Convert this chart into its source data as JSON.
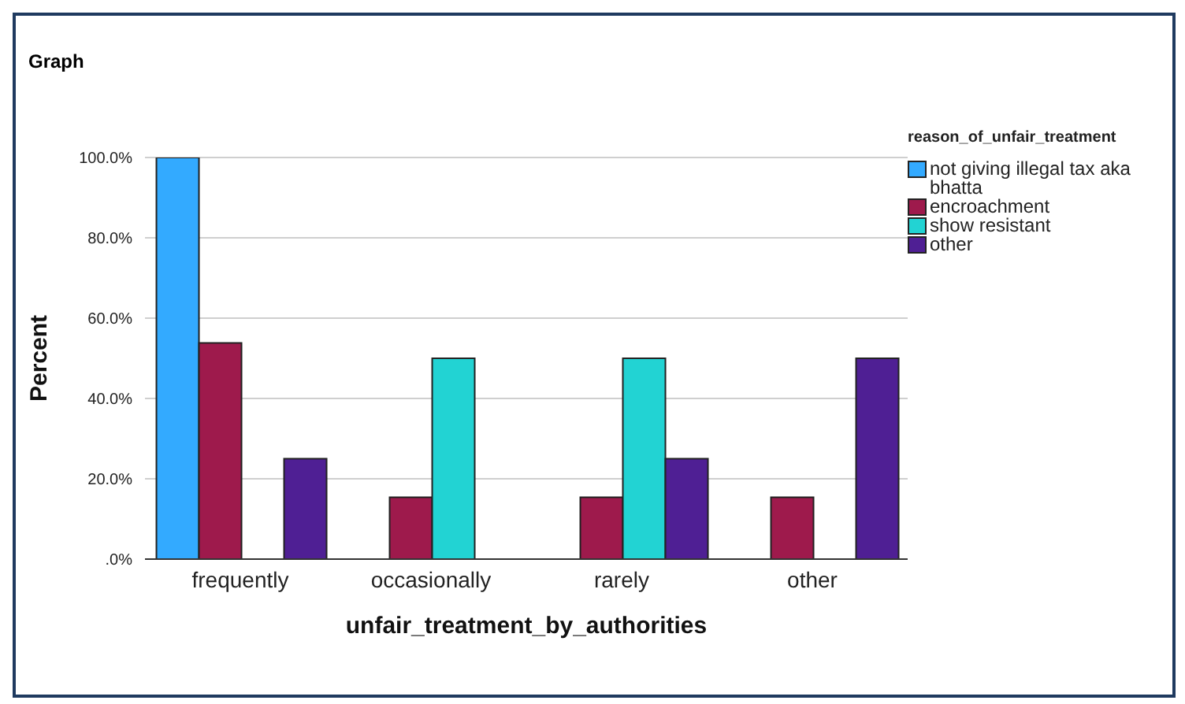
{
  "chart_data": {
    "type": "bar",
    "title": "Graph",
    "xlabel": "unfair_treatment_by_authorities",
    "ylabel": "Percent",
    "legend_title": "reason_of_unfair_treatment",
    "categories": [
      "frequently",
      "occasionally",
      "rarely",
      "other"
    ],
    "series": [
      {
        "name": "not giving illegal tax aka bhatta",
        "color": "#33aaff",
        "values": [
          100,
          null,
          null,
          null
        ]
      },
      {
        "name": "encroachment",
        "color": "#9e1a4c",
        "values": [
          53.8,
          15.4,
          15.4,
          15.4
        ]
      },
      {
        "name": "show resistant",
        "color": "#22d3d3",
        "values": [
          null,
          50,
          50,
          null
        ]
      },
      {
        "name": "other",
        "color": "#4f1f94",
        "values": [
          25,
          null,
          25,
          50
        ]
      }
    ],
    "ylim": [
      0,
      100
    ],
    "yticks": [
      {
        "value": 0,
        "label": ".0%"
      },
      {
        "value": 20,
        "label": "20.0%"
      },
      {
        "value": 40,
        "label": "40.0%"
      },
      {
        "value": 60,
        "label": "60.0%"
      },
      {
        "value": 80,
        "label": "80.0%"
      },
      {
        "value": 100,
        "label": "100.0%"
      }
    ],
    "grid": "y",
    "legend": "top right"
  }
}
